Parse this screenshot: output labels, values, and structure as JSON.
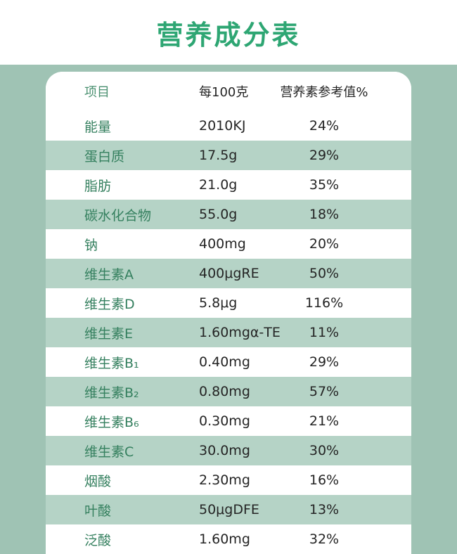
{
  "page": {
    "title": "营养成分表"
  },
  "colors": {
    "background_green": "#9fc3b4",
    "row_alt_green": "#b5d3c6",
    "title_green": "#2ea673",
    "label_green": "#35805f",
    "value_dark": "#242424"
  },
  "table": {
    "header": {
      "item": "项目",
      "per_100g": "每100克",
      "nrv": "营养素参考值%"
    },
    "rows": [
      {
        "item": "能量",
        "value": "2010KJ",
        "nrv": "24%"
      },
      {
        "item": "蛋白质",
        "value": "17.5g",
        "nrv": "29%"
      },
      {
        "item": "脂肪",
        "value": "21.0g",
        "nrv": "35%"
      },
      {
        "item": "碳水化合物",
        "value": "55.0g",
        "nrv": "18%"
      },
      {
        "item": "钠",
        "value": "400mg",
        "nrv": "20%"
      },
      {
        "item": "维生素A",
        "value": "400μgRE",
        "nrv": "50%"
      },
      {
        "item": "维生素D",
        "value": "5.8μg",
        "nrv": "116%"
      },
      {
        "item": "维生素E",
        "value": "1.60mgα-TE",
        "nrv": "11%"
      },
      {
        "item": "维生素B₁",
        "value": "0.40mg",
        "nrv": "29%"
      },
      {
        "item": "维生素B₂",
        "value": "0.80mg",
        "nrv": "57%"
      },
      {
        "item": "维生素B₆",
        "value": "0.30mg",
        "nrv": "21%"
      },
      {
        "item": "维生素C",
        "value": "30.0mg",
        "nrv": "30%"
      },
      {
        "item": "烟酸",
        "value": "2.30mg",
        "nrv": "16%"
      },
      {
        "item": "叶酸",
        "value": "50μgDFE",
        "nrv": "13%"
      },
      {
        "item": "泛酸",
        "value": "1.60mg",
        "nrv": "32%"
      }
    ]
  }
}
